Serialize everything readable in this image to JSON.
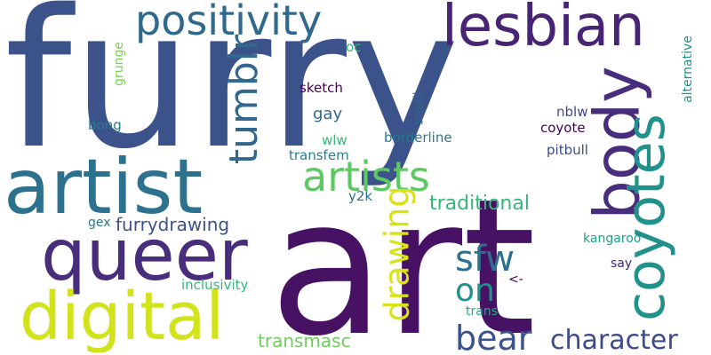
{
  "words": [
    {
      "text": "furry",
      "color": "#3b528b"
    },
    {
      "text": "art",
      "color": "#471164"
    },
    {
      "text": "artist",
      "color": "#2c728e"
    },
    {
      "text": "queer",
      "color": "#472d7b"
    },
    {
      "text": "digital",
      "color": "#d2e21b"
    },
    {
      "text": "body",
      "color": "#472d7b"
    },
    {
      "text": "coyotes",
      "color": "#21918c"
    },
    {
      "text": "lesbian",
      "color": "#482475"
    },
    {
      "text": "positivity",
      "color": "#31688e"
    },
    {
      "text": "artists",
      "color": "#5ec962"
    },
    {
      "text": "tumblr",
      "color": "#31688e"
    },
    {
      "text": "drawing",
      "color": "#d8e219"
    },
    {
      "text": "sfw",
      "color": "#2c728e"
    },
    {
      "text": "on",
      "color": "#21918c"
    },
    {
      "text": "bear",
      "color": "#3b528b"
    },
    {
      "text": "character",
      "color": "#3e4a89"
    },
    {
      "text": "transmasc",
      "color": "#6ccd5a"
    },
    {
      "text": "traditional",
      "color": "#35b779"
    },
    {
      "text": "furrydrawing",
      "color": "#3b528b"
    },
    {
      "text": "gay",
      "color": "#31688e"
    },
    {
      "text": "sketch",
      "color": "#440154"
    },
    {
      "text": "inclusivity",
      "color": "#35b779"
    },
    {
      "text": "borderline",
      "color": "#2a788e"
    },
    {
      "text": "transfem",
      "color": "#277f8e"
    },
    {
      "text": "wlw",
      "color": "#35b779"
    },
    {
      "text": "bong",
      "color": "#2a788e"
    },
    {
      "text": "y2k",
      "color": "#2c728e"
    },
    {
      "text": "gex",
      "color": "#2a788e"
    },
    {
      "text": "oc",
      "color": "#35b779"
    },
    {
      "text": "grunge",
      "color": "#7ad151"
    },
    {
      "text": "small",
      "color": "#31688e"
    },
    {
      "text": "nblw",
      "color": "#3e4a89"
    },
    {
      "text": "coyote",
      "color": "#440154"
    },
    {
      "text": "pitbull",
      "color": "#3e4a89"
    },
    {
      "text": "alternative",
      "color": "#21918c"
    },
    {
      "text": "kangaroo",
      "color": "#1f9e89"
    },
    {
      "text": "say",
      "color": "#482475"
    },
    {
      "text": "<-",
      "color": "#440154"
    },
    {
      "text": "trans",
      "color": "#22a884"
    }
  ]
}
